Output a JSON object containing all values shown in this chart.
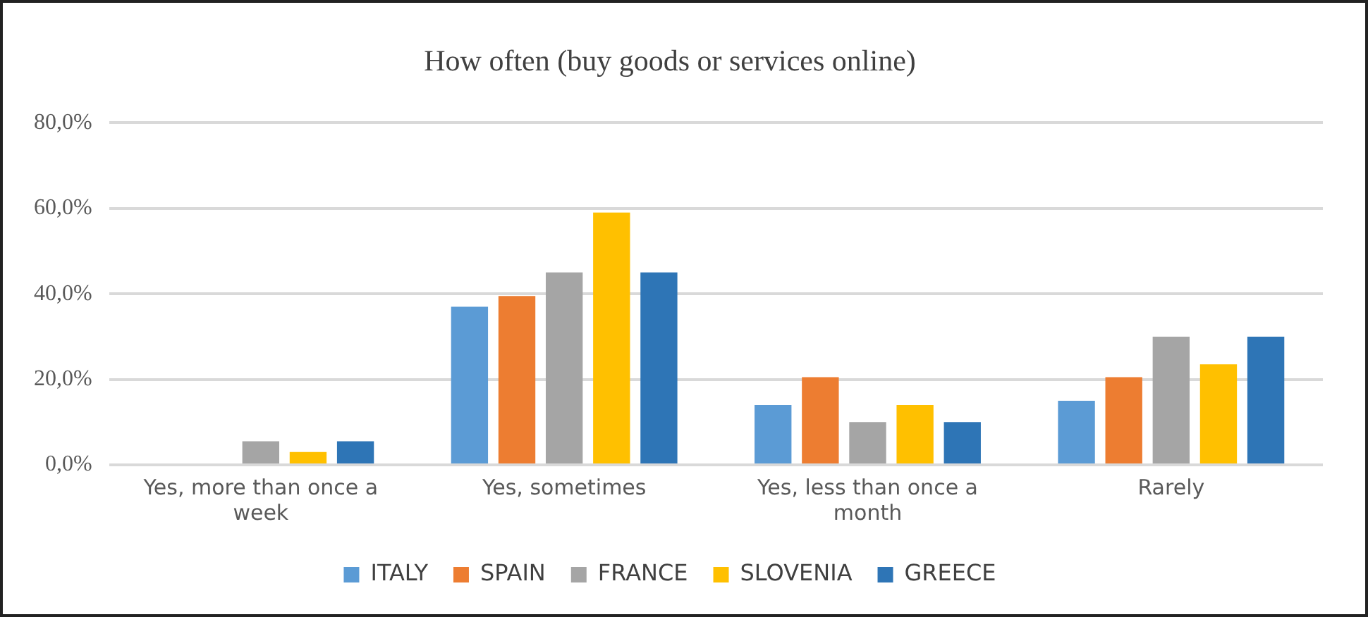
{
  "chart_data": {
    "type": "bar",
    "title": "How often (buy goods or services online)",
    "categories": [
      "Yes, more than once a week",
      "Yes, sometimes",
      "Yes, less than once a month",
      "Rarely"
    ],
    "series": [
      {
        "name": "ITALY",
        "color": "#5b9bd5",
        "values": [
          0,
          37,
          14,
          15
        ]
      },
      {
        "name": "SPAIN",
        "color": "#ed7d31",
        "values": [
          0,
          39.5,
          20.5,
          20.5
        ]
      },
      {
        "name": "FRANCE",
        "color": "#a5a5a5",
        "values": [
          5.5,
          45,
          10,
          30
        ]
      },
      {
        "name": "SLOVENIA",
        "color": "#ffc000",
        "values": [
          3,
          59,
          14,
          23.5
        ]
      },
      {
        "name": "GREECE",
        "color": "#2e75b6",
        "values": [
          5.5,
          45,
          10,
          30
        ]
      }
    ],
    "ylim": [
      0,
      80
    ],
    "yticks": [
      {
        "value": 0,
        "label": "0,0%"
      },
      {
        "value": 20,
        "label": "20,0%"
      },
      {
        "value": 40,
        "label": "40,0%"
      },
      {
        "value": 60,
        "label": "60,0%"
      },
      {
        "value": 80,
        "label": "80,0%"
      }
    ],
    "grid": "y",
    "legend": "bottom"
  }
}
